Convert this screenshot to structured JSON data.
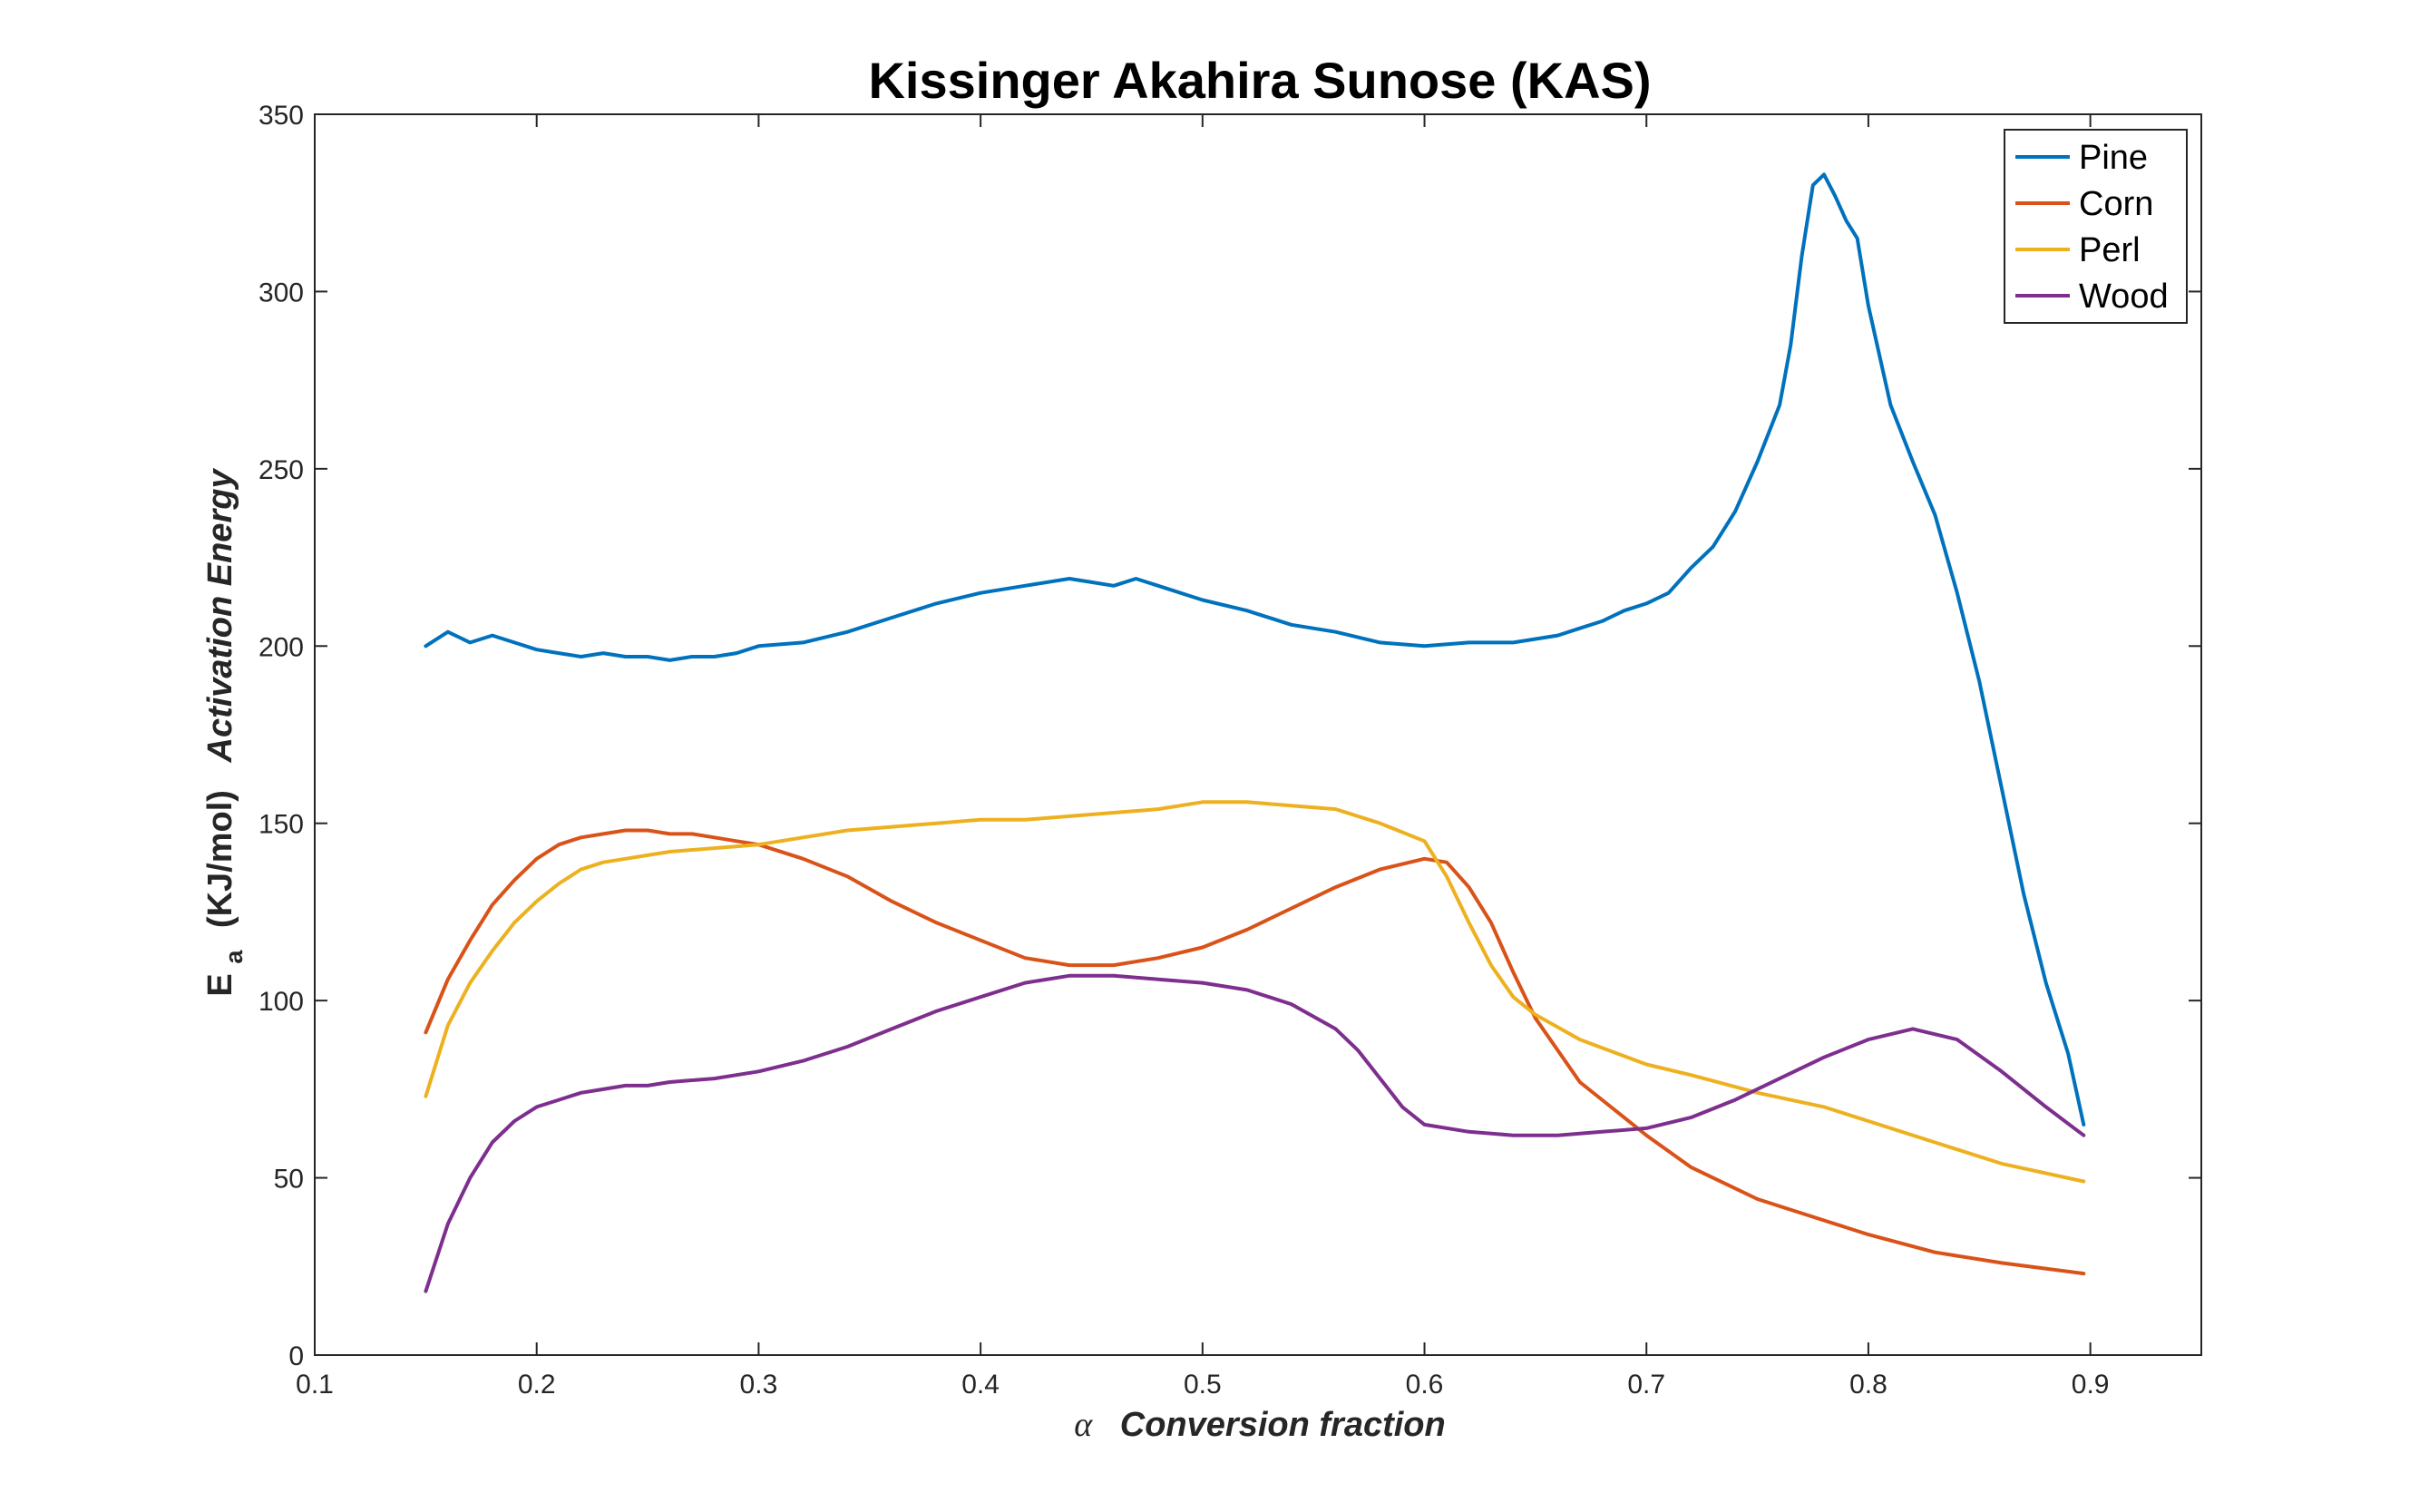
{
  "chart_data": {
    "type": "line",
    "title": "Kissinger Akahira Sunose (KAS)",
    "xlabel_symbol": "α",
    "xlabel_text": "Conversion fraction",
    "ylabel_symbol": "E",
    "ylabel_subscript": "a",
    "ylabel_units": "(KJ/mol)",
    "ylabel_text": "Activation Energy",
    "xlim": [
      0.1,
      0.95
    ],
    "ylim": [
      0,
      350
    ],
    "xticks": [
      0.1,
      0.2,
      0.3,
      0.4,
      0.5,
      0.6,
      0.7,
      0.8,
      0.9
    ],
    "xtick_labels": [
      "0.1",
      "0.2",
      "0.3",
      "0.4",
      "0.5",
      "0.6",
      "0.7",
      "0.8",
      "0.9"
    ],
    "yticks": [
      0,
      50,
      100,
      150,
      200,
      250,
      300,
      350
    ],
    "ytick_labels": [
      "0",
      "50",
      "100",
      "150",
      "200",
      "250",
      "300",
      "350"
    ],
    "grid": false,
    "legend_position": "top-right",
    "series": [
      {
        "name": "Pine",
        "color": "#0072BD",
        "x": [
          0.15,
          0.16,
          0.17,
          0.18,
          0.19,
          0.2,
          0.21,
          0.22,
          0.23,
          0.24,
          0.25,
          0.26,
          0.27,
          0.28,
          0.29,
          0.3,
          0.32,
          0.34,
          0.36,
          0.38,
          0.4,
          0.42,
          0.44,
          0.45,
          0.46,
          0.47,
          0.48,
          0.5,
          0.52,
          0.54,
          0.56,
          0.58,
          0.6,
          0.62,
          0.64,
          0.65,
          0.66,
          0.67,
          0.68,
          0.69,
          0.7,
          0.71,
          0.72,
          0.73,
          0.74,
          0.75,
          0.76,
          0.765,
          0.77,
          0.775,
          0.78,
          0.785,
          0.79,
          0.795,
          0.8,
          0.81,
          0.82,
          0.83,
          0.84,
          0.85,
          0.86,
          0.87,
          0.88,
          0.89,
          0.897
        ],
        "y": [
          200,
          204,
          201,
          203,
          201,
          199,
          198,
          197,
          198,
          197,
          197,
          196,
          197,
          197,
          198,
          200,
          201,
          204,
          208,
          212,
          215,
          217,
          219,
          218,
          217,
          219,
          217,
          213,
          210,
          206,
          204,
          201,
          200,
          201,
          201,
          202,
          203,
          205,
          207,
          210,
          212,
          215,
          222,
          228,
          238,
          252,
          268,
          285,
          310,
          330,
          333,
          327,
          320,
          315,
          296,
          268,
          252,
          237,
          215,
          190,
          160,
          130,
          105,
          85,
          65
        ]
      },
      {
        "name": "Corn",
        "color": "#D95319",
        "x": [
          0.15,
          0.16,
          0.17,
          0.18,
          0.19,
          0.2,
          0.21,
          0.22,
          0.23,
          0.24,
          0.25,
          0.26,
          0.27,
          0.28,
          0.29,
          0.3,
          0.32,
          0.34,
          0.36,
          0.38,
          0.4,
          0.42,
          0.44,
          0.46,
          0.48,
          0.5,
          0.52,
          0.54,
          0.56,
          0.58,
          0.6,
          0.61,
          0.62,
          0.63,
          0.64,
          0.65,
          0.67,
          0.7,
          0.72,
          0.75,
          0.78,
          0.8,
          0.83,
          0.86,
          0.897
        ],
        "y": [
          91,
          106,
          117,
          127,
          134,
          140,
          144,
          146,
          147,
          148,
          148,
          147,
          147,
          146,
          145,
          144,
          140,
          135,
          128,
          122,
          117,
          112,
          110,
          110,
          112,
          115,
          120,
          126,
          132,
          137,
          140,
          139,
          132,
          122,
          108,
          95,
          77,
          62,
          53,
          44,
          38,
          34,
          29,
          26,
          23
        ]
      },
      {
        "name": "Perl",
        "color": "#EDB120",
        "x": [
          0.15,
          0.16,
          0.17,
          0.18,
          0.19,
          0.2,
          0.21,
          0.22,
          0.23,
          0.24,
          0.25,
          0.26,
          0.28,
          0.3,
          0.32,
          0.34,
          0.36,
          0.38,
          0.4,
          0.42,
          0.44,
          0.46,
          0.48,
          0.5,
          0.52,
          0.54,
          0.56,
          0.58,
          0.6,
          0.61,
          0.62,
          0.63,
          0.64,
          0.65,
          0.67,
          0.7,
          0.72,
          0.75,
          0.78,
          0.8,
          0.83,
          0.86,
          0.897
        ],
        "y": [
          73,
          93,
          105,
          114,
          122,
          128,
          133,
          137,
          139,
          140,
          141,
          142,
          143,
          144,
          146,
          148,
          149,
          150,
          151,
          151,
          152,
          153,
          154,
          156,
          156,
          155,
          154,
          150,
          145,
          135,
          122,
          110,
          101,
          96,
          89,
          82,
          79,
          74,
          70,
          66,
          60,
          54,
          49
        ]
      },
      {
        "name": "Wood",
        "color": "#7E2F8E",
        "x": [
          0.15,
          0.16,
          0.17,
          0.18,
          0.19,
          0.2,
          0.21,
          0.22,
          0.23,
          0.24,
          0.25,
          0.26,
          0.28,
          0.3,
          0.32,
          0.34,
          0.36,
          0.38,
          0.4,
          0.42,
          0.44,
          0.46,
          0.48,
          0.5,
          0.52,
          0.54,
          0.56,
          0.57,
          0.58,
          0.59,
          0.6,
          0.62,
          0.64,
          0.66,
          0.68,
          0.7,
          0.72,
          0.74,
          0.76,
          0.78,
          0.8,
          0.82,
          0.84,
          0.86,
          0.88,
          0.897
        ],
        "y": [
          18,
          37,
          50,
          60,
          66,
          70,
          72,
          74,
          75,
          76,
          76,
          77,
          78,
          80,
          83,
          87,
          92,
          97,
          101,
          105,
          107,
          107,
          106,
          105,
          103,
          99,
          92,
          86,
          78,
          70,
          65,
          63,
          62,
          62,
          63,
          64,
          67,
          72,
          78,
          84,
          89,
          92,
          89,
          80,
          70,
          62
        ]
      }
    ]
  }
}
